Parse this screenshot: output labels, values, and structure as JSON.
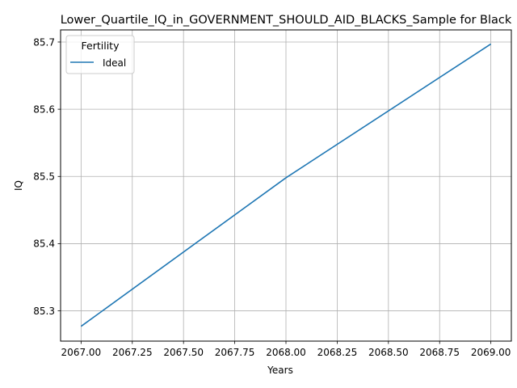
{
  "chart_data": {
    "type": "line",
    "title": "Lower_Quartile_IQ_in_GOVERNMENT_SHOULD_AID_BLACKS_Sample for Black",
    "xlabel": "Years",
    "ylabel": "IQ",
    "xlim": [
      2066.9,
      2069.1
    ],
    "ylim": [
      85.255,
      85.718
    ],
    "xticks": [
      2067.0,
      2067.25,
      2067.5,
      2067.75,
      2068.0,
      2068.25,
      2068.5,
      2068.75,
      2069.0
    ],
    "xtick_labels": [
      "2067.00",
      "2067.25",
      "2067.50",
      "2067.75",
      "2068.00",
      "2068.25",
      "2068.50",
      "2068.75",
      "2069.00"
    ],
    "yticks": [
      85.3,
      85.4,
      85.5,
      85.6,
      85.7
    ],
    "ytick_labels": [
      "85.3",
      "85.4",
      "85.5",
      "85.6",
      "85.7"
    ],
    "grid": true,
    "legend": {
      "title": "Fertility",
      "position": "upper-left"
    },
    "series": [
      {
        "name": "Ideal",
        "color": "#1f77b4",
        "x": [
          2067,
          2068,
          2069
        ],
        "y": [
          85.277,
          85.498,
          85.697
        ]
      }
    ]
  }
}
